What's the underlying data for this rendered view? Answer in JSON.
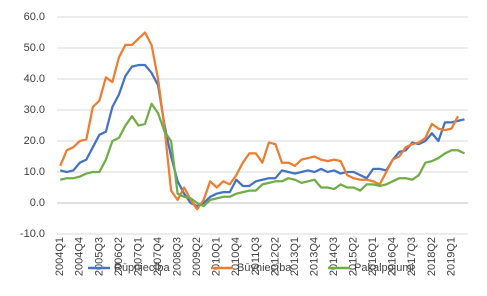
{
  "chart_data": {
    "type": "line",
    "categories": [
      "2004Q1",
      null,
      null,
      "2004Q4",
      null,
      null,
      "2005Q3",
      null,
      null,
      "2006Q2",
      null,
      null,
      "2007Q1",
      null,
      null,
      "2007Q4",
      null,
      null,
      "2008Q3",
      null,
      null,
      "2009Q2",
      null,
      null,
      "2010Q1",
      null,
      null,
      "2010Q4",
      null,
      null,
      "2011Q3",
      null,
      null,
      "2012Q2",
      null,
      null,
      "2013Q1",
      null,
      null,
      "2013Q4",
      null,
      null,
      "2014Q3",
      null,
      null,
      "2015Q2",
      null,
      null,
      "2016Q1",
      null,
      null,
      "2016Q4",
      null,
      null,
      "2017Q3",
      null,
      null,
      "2018Q2",
      null,
      null,
      "2019Q1",
      null,
      null
    ],
    "series": [
      {
        "name": "Rūpniecība",
        "color": "#4472c4",
        "values": [
          10.5,
          10,
          10.5,
          13,
          14,
          18,
          22,
          23,
          31,
          35,
          41,
          44,
          44.5,
          44.5,
          42,
          38,
          25,
          15,
          7,
          3,
          0,
          -1,
          0,
          2,
          3,
          3.5,
          3.5,
          7.5,
          5.5,
          5.5,
          7,
          7.5,
          8,
          8,
          10.5,
          10,
          9.5,
          10,
          10.5,
          10,
          11,
          10,
          10.5,
          9.5,
          10,
          10,
          9,
          8,
          11,
          11,
          10.5,
          14,
          16.5,
          17,
          19.5,
          19,
          20,
          22.5,
          20,
          26,
          26,
          26.5,
          27
        ]
      },
      {
        "name": "Būvniecība",
        "color": "#ed7d31",
        "values": [
          12,
          17,
          18,
          20,
          20.5,
          31,
          33,
          40.5,
          39,
          47,
          51,
          51,
          53,
          55,
          51,
          40,
          24,
          4,
          1,
          5,
          1,
          -2,
          1,
          7,
          5,
          7,
          6,
          9,
          13,
          16,
          16,
          13,
          19.5,
          19,
          13,
          13,
          12,
          14,
          14.5,
          15,
          14,
          13.5,
          14,
          13.5,
          9,
          8,
          7.5,
          7.5,
          7,
          6,
          10,
          14,
          15,
          18,
          19,
          19.5,
          21,
          25.5,
          24,
          23.5,
          24,
          28,
          null
        ]
      },
      {
        "name": "Pakalpojumi",
        "color": "#70ad47",
        "values": [
          7.5,
          8,
          8,
          8.5,
          9.5,
          10,
          10,
          14,
          20,
          21,
          25,
          28,
          25,
          25.5,
          32,
          29,
          23,
          20,
          3,
          2,
          1.5,
          0,
          -1,
          1,
          1.5,
          2,
          2,
          3,
          3.5,
          4,
          4,
          6,
          6.5,
          7,
          7,
          8,
          7.5,
          6.5,
          7,
          7.5,
          5,
          5,
          4.5,
          6,
          5,
          5,
          4,
          6,
          6,
          5.5,
          6,
          7,
          8,
          8,
          7.5,
          9,
          13,
          13.5,
          14.5,
          16,
          17,
          17,
          16
        ]
      }
    ],
    "ylim": [
      -10,
      60
    ],
    "yticks": [
      {
        "value": -10,
        "label": "-10.0"
      },
      {
        "value": 0,
        "label": "0.0"
      },
      {
        "value": 10,
        "label": "10.0"
      },
      {
        "value": 20,
        "label": "20.0"
      },
      {
        "value": 30,
        "label": "30.0"
      },
      {
        "value": 40,
        "label": "40.0"
      },
      {
        "value": 50,
        "label": "50.0"
      },
      {
        "value": 60,
        "label": "60.0"
      }
    ],
    "grid": true
  }
}
